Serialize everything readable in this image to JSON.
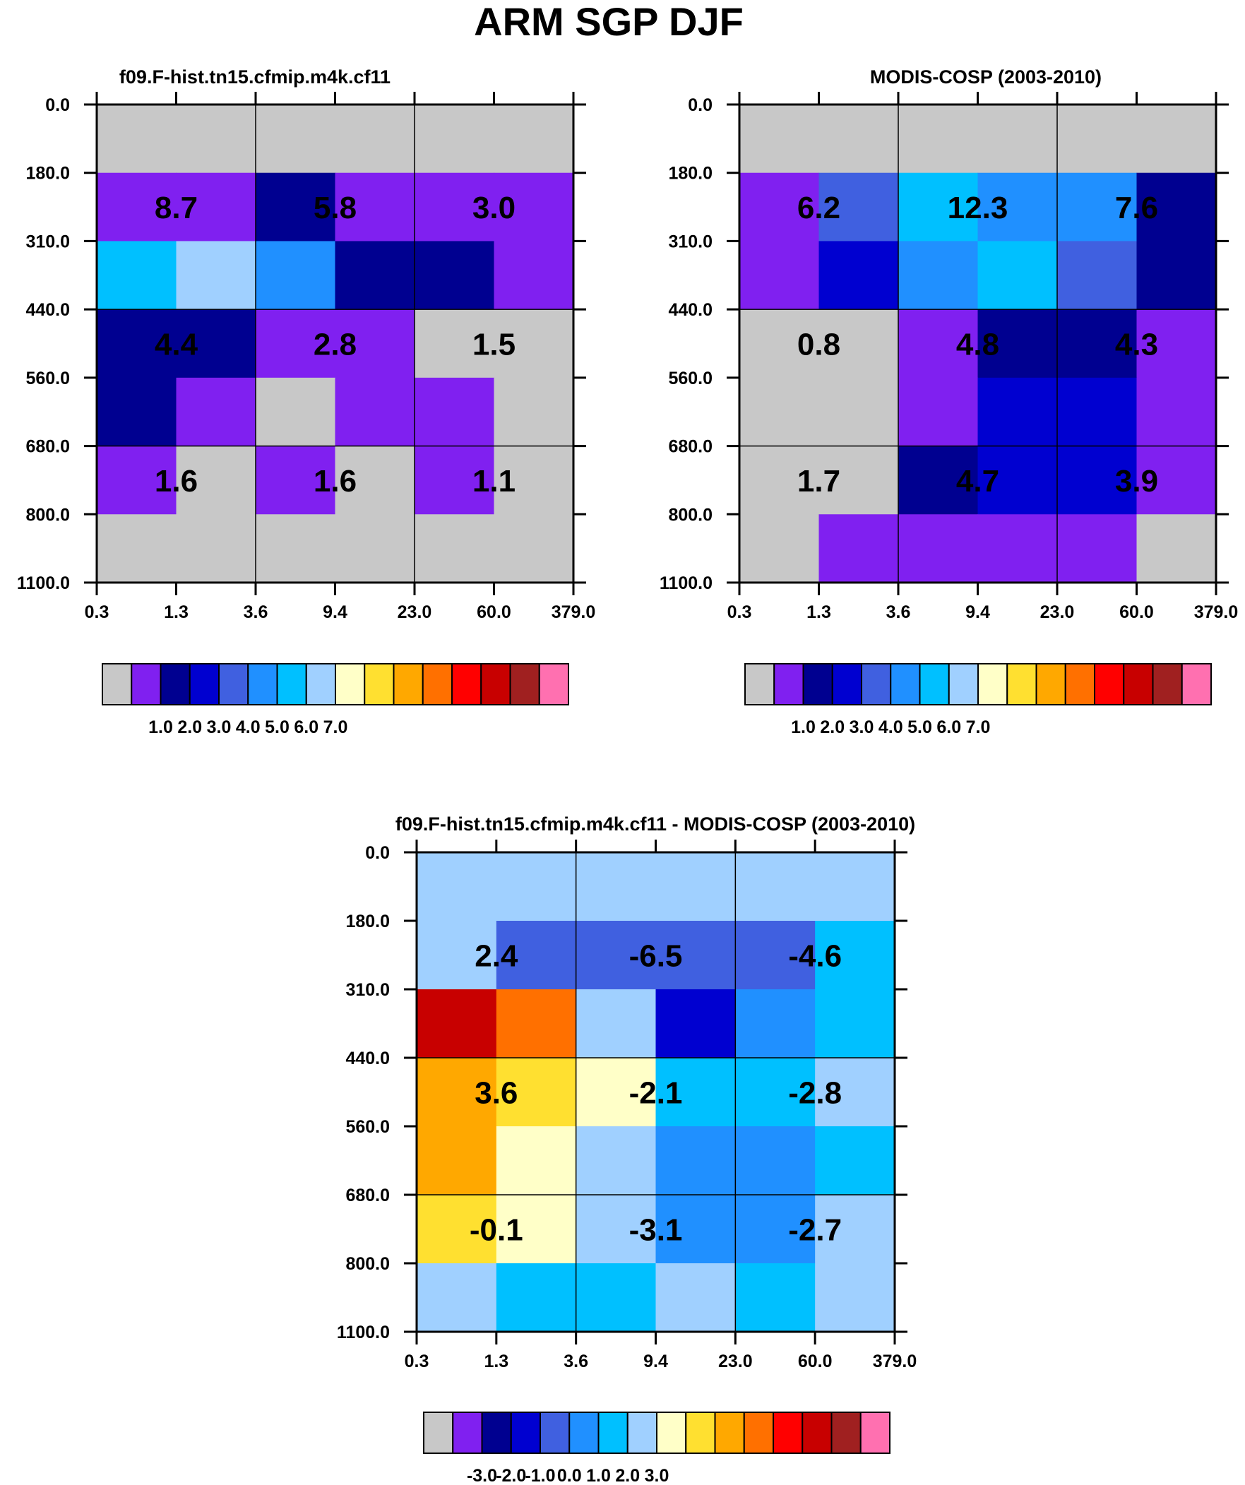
{
  "title": "ARM SGP DJF",
  "colors": {
    "abs_palette": [
      "#c8c8c8",
      "#8020f0",
      "#000090",
      "#0000d0",
      "#4060e0",
      "#2090ff",
      "#00c0ff",
      "#a0d0ff",
      "#ffffc8",
      "#ffe030",
      "#ffa800",
      "#ff7000",
      "#ff0000",
      "#c80000",
      "#a02020",
      "#ff70b0"
    ],
    "diff_palette": [
      "#c8c8c8",
      "#8020f0",
      "#000090",
      "#0000d0",
      "#4060e0",
      "#2090ff",
      "#00c0ff",
      "#a0d0ff",
      "#ffffc8",
      "#ffe030",
      "#ffa800",
      "#ff7000",
      "#ff0000",
      "#c80000",
      "#a02020",
      "#ff70b0"
    ]
  },
  "chart_data": [
    {
      "type": "heatmap",
      "title": "f09.F-hist.tn15.cfmip.m4k.cf11",
      "x_ticks": [
        "0.3",
        "1.3",
        "3.6",
        "9.4",
        "23.0",
        "60.0",
        "379.0"
      ],
      "y_ticks": [
        "0.0",
        "180.0",
        "310.0",
        "440.0",
        "560.0",
        "680.0",
        "800.0",
        "1100.0"
      ],
      "cell_levels": [
        [
          0,
          0,
          0,
          0,
          0,
          0
        ],
        [
          1,
          1,
          2,
          1,
          1,
          1
        ],
        [
          6,
          7,
          5,
          2,
          2,
          1
        ],
        [
          2,
          2,
          1,
          1,
          0,
          0
        ],
        [
          2,
          1,
          0,
          1,
          1,
          0
        ],
        [
          1,
          0,
          1,
          0,
          1,
          0
        ],
        [
          0,
          0,
          0,
          0,
          0,
          0
        ]
      ],
      "block_labels": [
        [
          "8.7",
          "5.8",
          "3.0"
        ],
        [
          "4.4",
          "2.8",
          "1.5"
        ],
        [
          "1.6",
          "1.6",
          "1.1"
        ]
      ],
      "colorbar_labels": [
        "1.0",
        "2.0",
        "3.0",
        "4.0",
        "5.0",
        "6.0",
        "7.0"
      ]
    },
    {
      "type": "heatmap",
      "title": "MODIS-COSP (2003-2010)",
      "x_ticks": [
        "0.3",
        "1.3",
        "3.6",
        "9.4",
        "23.0",
        "60.0",
        "379.0"
      ],
      "y_ticks": [
        "0.0",
        "180.0",
        "310.0",
        "440.0",
        "560.0",
        "680.0",
        "800.0",
        "1100.0"
      ],
      "cell_levels": [
        [
          0,
          0,
          0,
          0,
          0,
          0
        ],
        [
          1,
          4,
          6,
          5,
          5,
          2
        ],
        [
          1,
          3,
          5,
          6,
          4,
          2
        ],
        [
          0,
          0,
          1,
          2,
          2,
          1
        ],
        [
          0,
          0,
          1,
          3,
          3,
          1
        ],
        [
          0,
          0,
          2,
          3,
          3,
          1
        ],
        [
          0,
          1,
          1,
          1,
          1,
          0
        ]
      ],
      "block_labels": [
        [
          "6.2",
          "12.3",
          "7.6"
        ],
        [
          "0.8",
          "4.8",
          "4.3"
        ],
        [
          "1.7",
          "4.7",
          "3.9"
        ]
      ],
      "colorbar_labels": [
        "1.0",
        "2.0",
        "3.0",
        "4.0",
        "5.0",
        "6.0",
        "7.0"
      ]
    },
    {
      "type": "heatmap",
      "title": "f09.F-hist.tn15.cfmip.m4k.cf11 - MODIS-COSP (2003-2010)",
      "x_ticks": [
        "0.3",
        "1.3",
        "3.6",
        "9.4",
        "23.0",
        "60.0",
        "379.0"
      ],
      "y_ticks": [
        "0.0",
        "180.0",
        "310.0",
        "440.0",
        "560.0",
        "680.0",
        "800.0",
        "1100.0"
      ],
      "cell_levels": [
        [
          7,
          7,
          7,
          7,
          7,
          7
        ],
        [
          7,
          4,
          4,
          4,
          4,
          6
        ],
        [
          13,
          11,
          7,
          3,
          5,
          6
        ],
        [
          10,
          9,
          8,
          6,
          6,
          7
        ],
        [
          10,
          8,
          7,
          5,
          5,
          6
        ],
        [
          9,
          8,
          7,
          5,
          5,
          7
        ],
        [
          7,
          6,
          6,
          7,
          6,
          7
        ]
      ],
      "block_labels": [
        [
          "2.4",
          "-6.5",
          "-4.6"
        ],
        [
          "3.6",
          "-2.1",
          "-2.8"
        ],
        [
          "-0.1",
          "-3.1",
          "-2.7"
        ]
      ],
      "colorbar_labels": [
        "-3.0",
        "-2.0",
        "-1.0",
        "0.0",
        "1.0",
        "2.0",
        "3.0"
      ]
    }
  ]
}
